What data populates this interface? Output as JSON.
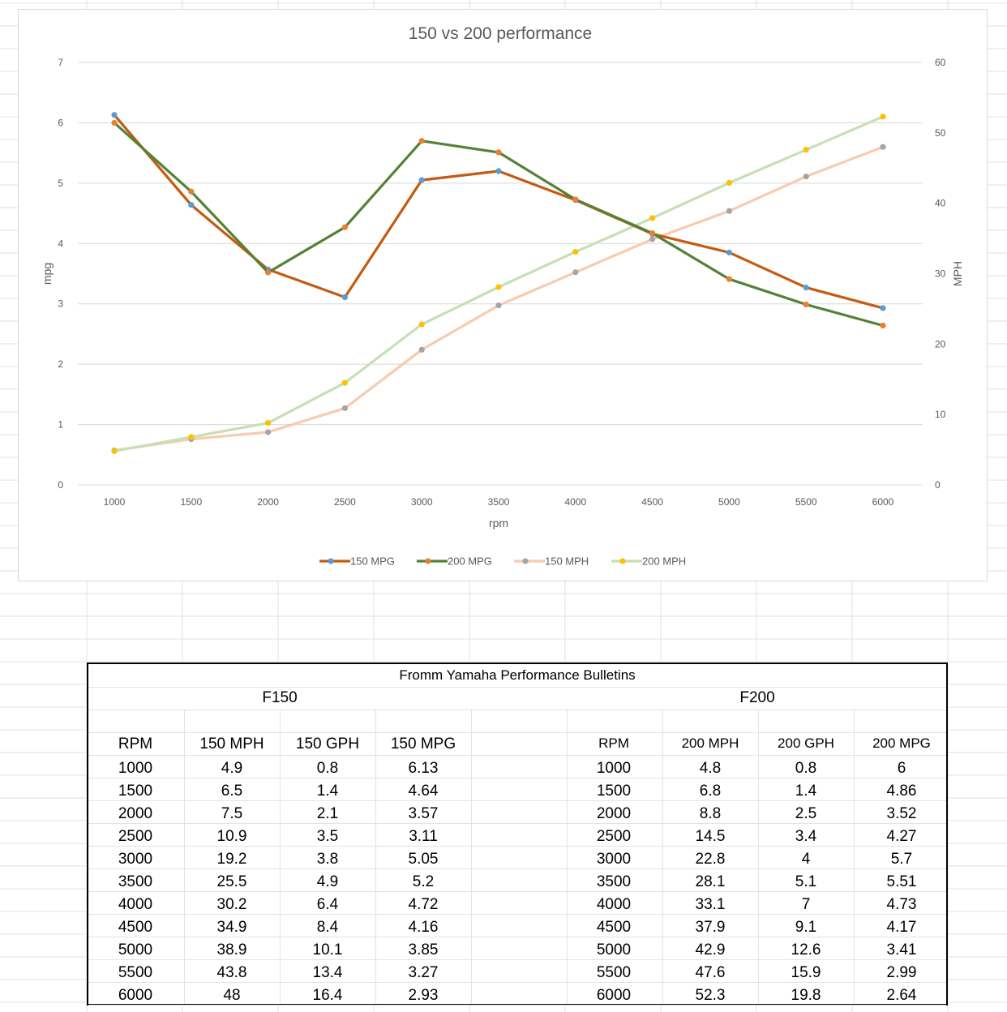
{
  "chart_data": {
    "type": "line",
    "title": "150 vs 200 performance",
    "xlabel": "rpm",
    "ylabel": "mpg",
    "y2label": "MPH",
    "categories": [
      "1000",
      "1500",
      "2000",
      "2500",
      "3000",
      "3500",
      "4000",
      "4500",
      "5000",
      "5500",
      "6000"
    ],
    "ylim": [
      0,
      7
    ],
    "y2lim": [
      0,
      60
    ],
    "yticks": [
      "0",
      "1",
      "2",
      "3",
      "4",
      "5",
      "6",
      "7"
    ],
    "y2ticks": [
      "0",
      "10",
      "20",
      "30",
      "40",
      "50",
      "60"
    ],
    "grid": true,
    "legend": "bottom",
    "series": [
      {
        "name": "150 MPG",
        "axis": "left",
        "line_color": "#c55a11",
        "marker_color": "#5b9bd5",
        "values": [
          6.13,
          4.64,
          3.57,
          3.11,
          5.05,
          5.2,
          4.72,
          4.16,
          3.85,
          3.27,
          2.93
        ]
      },
      {
        "name": "200 MPG",
        "axis": "left",
        "line_color": "#548235",
        "marker_color": "#ed7d31",
        "values": [
          6,
          4.86,
          3.52,
          4.27,
          5.7,
          5.51,
          4.73,
          4.17,
          3.41,
          2.99,
          2.64
        ]
      },
      {
        "name": "150 MPH",
        "axis": "right",
        "line_color": "#f8cbad",
        "marker_color": "#a5a5a5",
        "values": [
          4.9,
          6.5,
          7.5,
          10.9,
          19.2,
          25.5,
          30.2,
          34.9,
          38.9,
          43.8,
          48
        ]
      },
      {
        "name": "200 MPH",
        "axis": "right",
        "line_color": "#c5e0b4",
        "marker_color": "#ffc000",
        "values": [
          4.8,
          6.8,
          8.8,
          14.5,
          22.8,
          28.1,
          33.1,
          37.9,
          42.9,
          47.6,
          52.3
        ]
      }
    ]
  },
  "table": {
    "title": "Fromm Yamaha Performance Bulletins",
    "group_left": "F150",
    "group_right": "F200",
    "headers_left": [
      "RPM",
      "150 MPH",
      "150 GPH",
      "150 MPG"
    ],
    "headers_right": [
      "RPM",
      "200 MPH",
      "200 GPH",
      "200 MPG"
    ],
    "rows_left": [
      [
        "1000",
        "4.9",
        "0.8",
        "6.13"
      ],
      [
        "1500",
        "6.5",
        "1.4",
        "4.64"
      ],
      [
        "2000",
        "7.5",
        "2.1",
        "3.57"
      ],
      [
        "2500",
        "10.9",
        "3.5",
        "3.11"
      ],
      [
        "3000",
        "19.2",
        "3.8",
        "5.05"
      ],
      [
        "3500",
        "25.5",
        "4.9",
        "5.2"
      ],
      [
        "4000",
        "30.2",
        "6.4",
        "4.72"
      ],
      [
        "4500",
        "34.9",
        "8.4",
        "4.16"
      ],
      [
        "5000",
        "38.9",
        "10.1",
        "3.85"
      ],
      [
        "5500",
        "43.8",
        "13.4",
        "3.27"
      ],
      [
        "6000",
        "48",
        "16.4",
        "2.93"
      ]
    ],
    "rows_right": [
      [
        "1000",
        "4.8",
        "0.8",
        "6"
      ],
      [
        "1500",
        "6.8",
        "1.4",
        "4.86"
      ],
      [
        "2000",
        "8.8",
        "2.5",
        "3.52"
      ],
      [
        "2500",
        "14.5",
        "3.4",
        "4.27"
      ],
      [
        "3000",
        "22.8",
        "4",
        "5.7"
      ],
      [
        "3500",
        "28.1",
        "5.1",
        "5.51"
      ],
      [
        "4000",
        "33.1",
        "7",
        "4.73"
      ],
      [
        "4500",
        "37.9",
        "9.1",
        "4.17"
      ],
      [
        "5000",
        "42.9",
        "12.6",
        "3.41"
      ],
      [
        "5500",
        "47.6",
        "15.9",
        "2.99"
      ],
      [
        "6000",
        "52.3",
        "19.8",
        "2.64"
      ]
    ]
  }
}
